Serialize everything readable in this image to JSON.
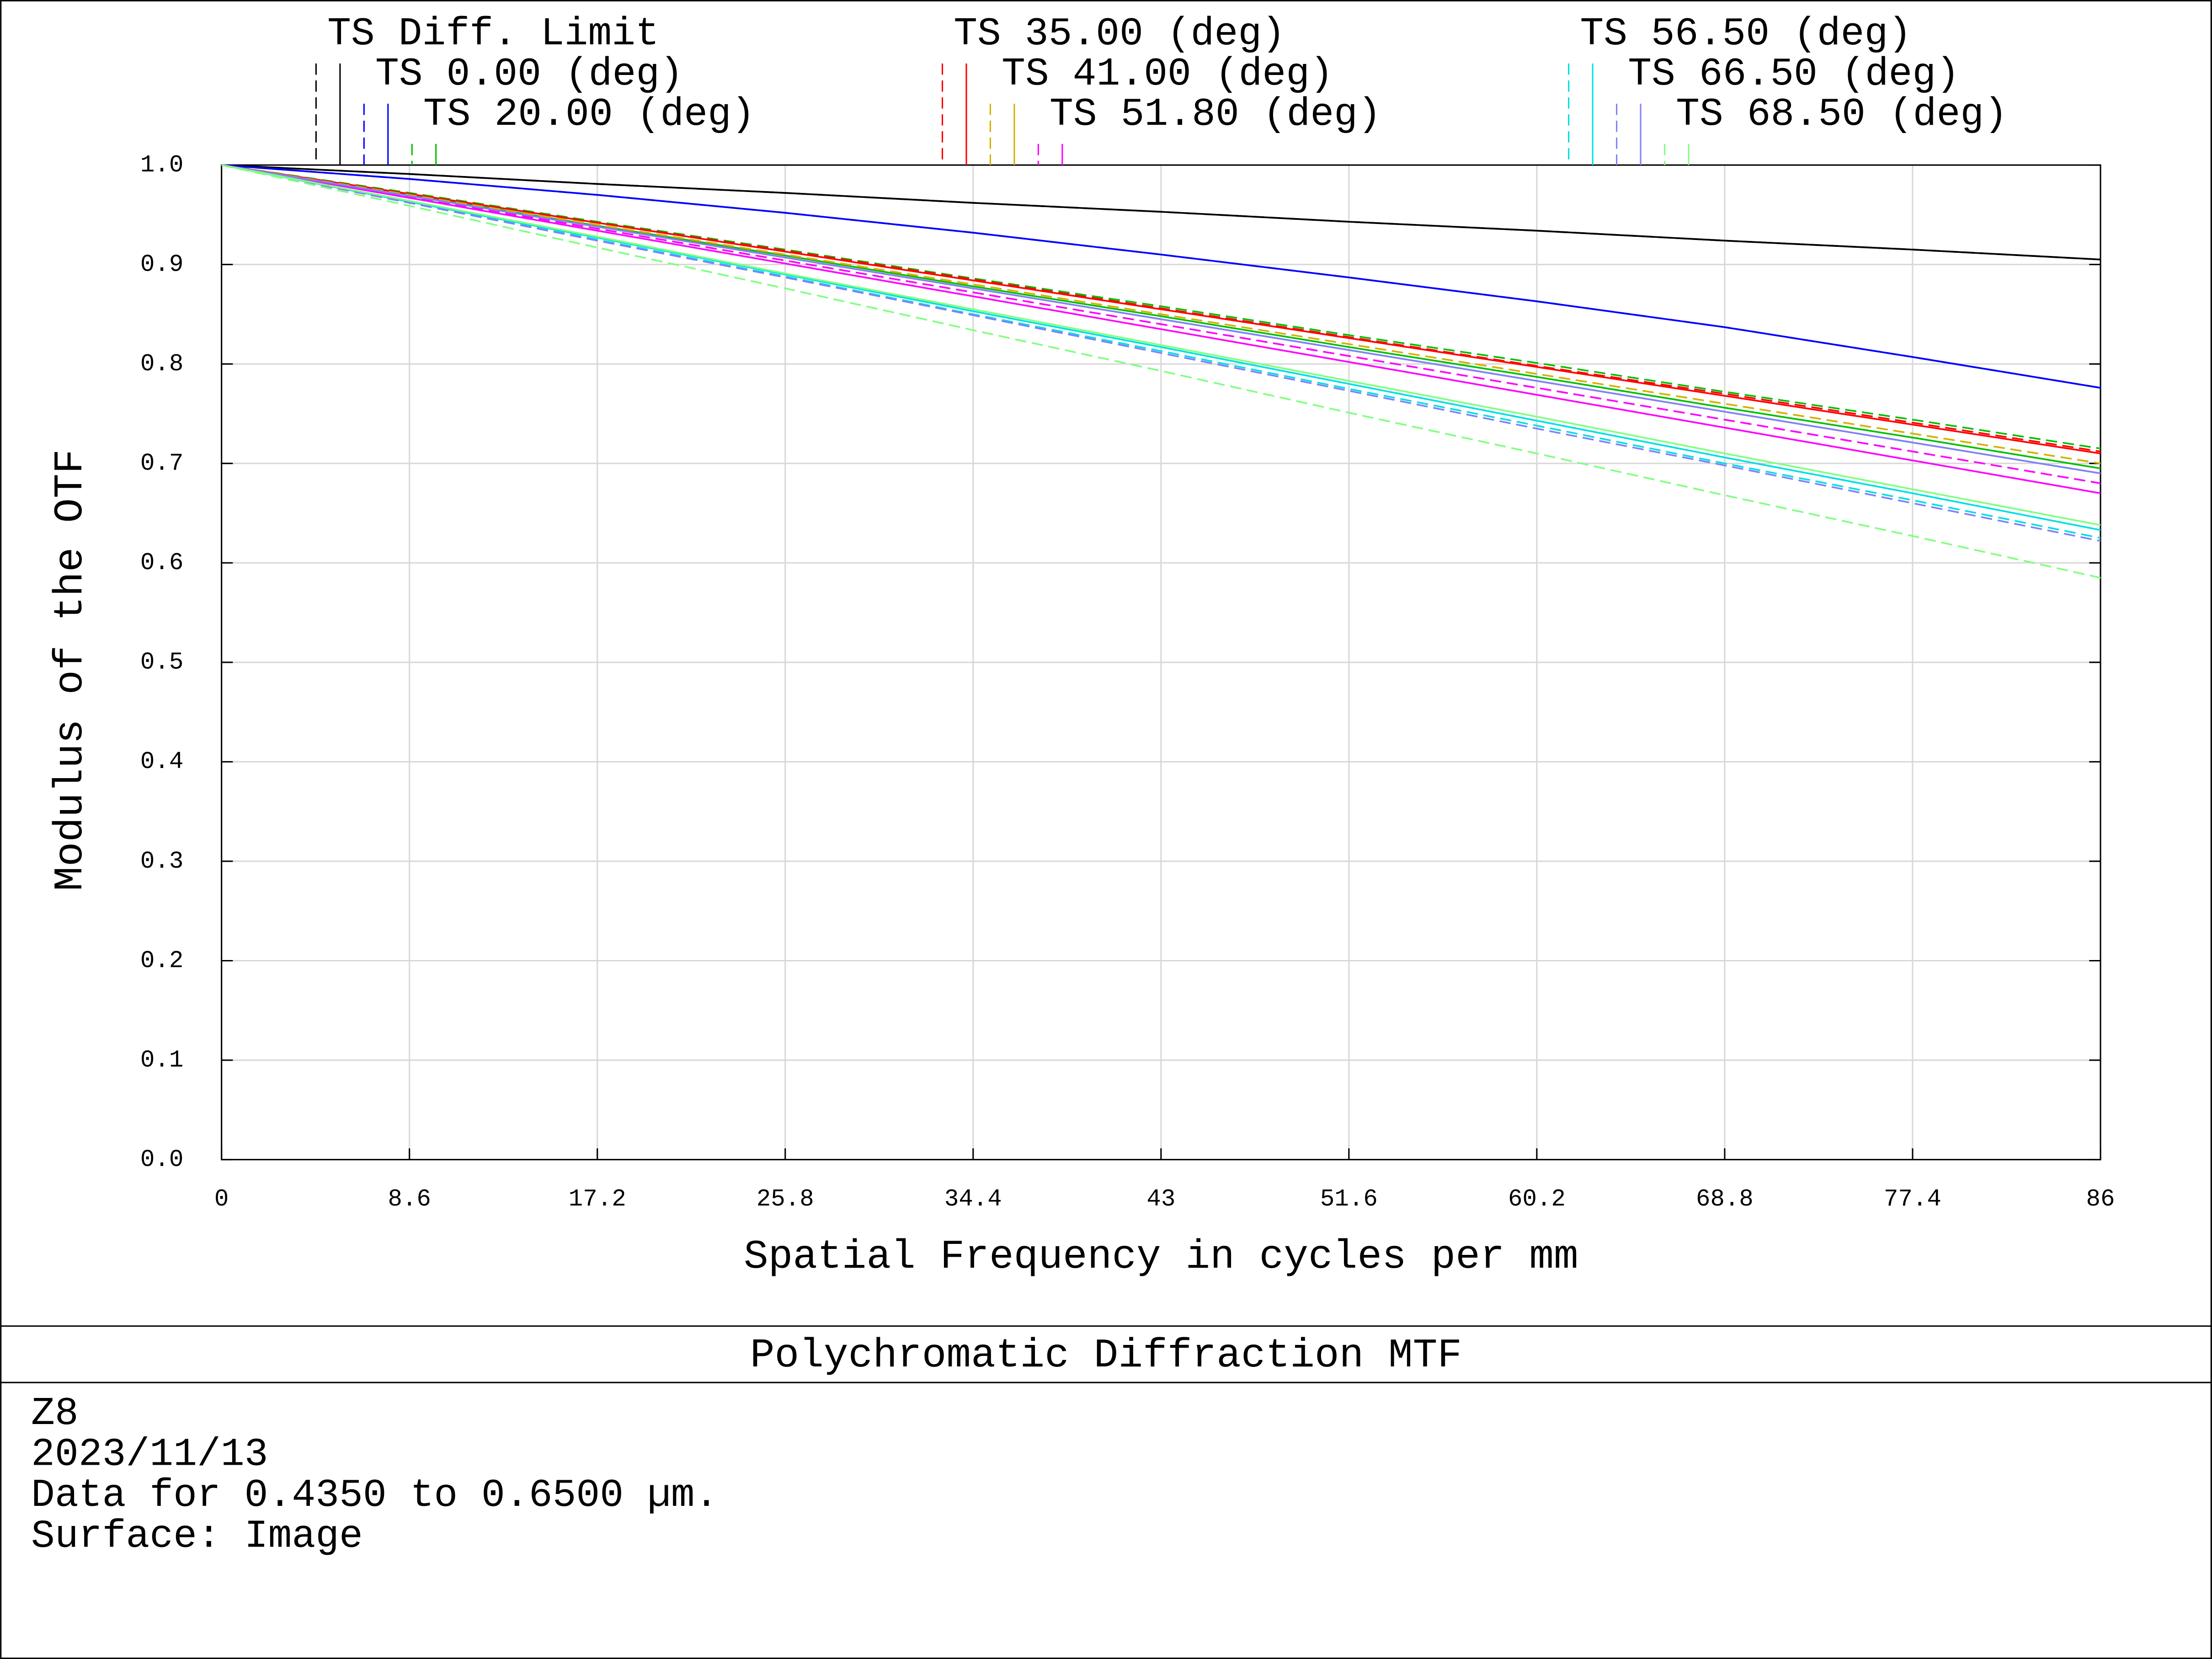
{
  "chart_data": {
    "type": "line",
    "title": "Polychromatic Diffraction MTF",
    "x_label": "Spatial Frequency in cycles per mm",
    "y_label": "Modulus of the OTF",
    "notes": [
      "Z8",
      "2023/11/13",
      "Data for 0.4350 to 0.6500 µm.",
      "Surface: Image"
    ],
    "x": [
      0,
      8.6,
      17.2,
      25.8,
      34.4,
      43,
      51.6,
      60.2,
      68.8,
      77.4,
      86
    ],
    "xlim": [
      0,
      86
    ],
    "xticks": [
      0,
      8.6,
      17.2,
      25.8,
      34.4,
      43,
      51.6,
      60.2,
      68.8,
      77.4,
      86
    ],
    "ylim": [
      0,
      1
    ],
    "yticks": [
      {
        "value": 0,
        "label": "0.0"
      },
      0.1,
      0.2,
      0.3,
      0.4,
      0.5,
      0.6,
      0.7,
      0.8,
      0.9,
      {
        "value": 1,
        "label": "1.0"
      }
    ],
    "grid": true,
    "series": [
      {
        "name": "TS Diff. Limit",
        "color": "#000000",
        "values": [
          1,
          0.991,
          0.981,
          0.972,
          0.962,
          0.953,
          0.943,
          0.934,
          0.924,
          0.915,
          0.905
        ],
        "sagittal_values": [
          1,
          0.991,
          0.981,
          0.972,
          0.962,
          0.953,
          0.943,
          0.934,
          0.924,
          0.915,
          0.905
        ]
      },
      {
        "name": "TS 0.00 (deg)",
        "color": "#0000ff",
        "values": [
          1,
          0.986,
          0.97,
          0.952,
          0.932,
          0.91,
          0.887,
          0.863,
          0.837,
          0.807,
          0.776
        ],
        "sagittal_values": [
          1,
          0.986,
          0.97,
          0.952,
          0.932,
          0.91,
          0.887,
          0.863,
          0.837,
          0.807,
          0.776
        ]
      },
      {
        "name": "TS 20.00 (deg)",
        "color": "#00c000",
        "values": [
          1,
          0.97,
          0.939,
          0.909,
          0.878,
          0.848,
          0.817,
          0.787,
          0.756,
          0.726,
          0.695
        ],
        "sagittal_values": [
          1,
          0.972,
          0.943,
          0.915,
          0.886,
          0.858,
          0.829,
          0.801,
          0.772,
          0.744,
          0.715
        ]
      },
      {
        "name": "TS 35.00 (deg)",
        "color": "#ff0000",
        "values": [
          1,
          0.971,
          0.942,
          0.913,
          0.884,
          0.855,
          0.826,
          0.797,
          0.768,
          0.739,
          0.71
        ],
        "sagittal_values": [
          1,
          0.971,
          0.942,
          0.914,
          0.885,
          0.856,
          0.827,
          0.798,
          0.77,
          0.741,
          0.712
        ]
      },
      {
        "name": "TS 41.00 (deg)",
        "color": "#d4b000",
        "values": [
          1,
          0.969,
          0.938,
          0.907,
          0.876,
          0.845,
          0.814,
          0.783,
          0.752,
          0.721,
          0.69
        ],
        "sagittal_values": [
          1,
          0.97,
          0.94,
          0.91,
          0.88,
          0.85,
          0.82,
          0.79,
          0.76,
          0.73,
          0.7
        ]
      },
      {
        "name": "TS 51.80 (deg)",
        "color": "#ff00ff",
        "values": [
          1,
          0.967,
          0.934,
          0.901,
          0.868,
          0.835,
          0.802,
          0.769,
          0.736,
          0.703,
          0.67
        ],
        "sagittal_values": [
          1,
          0.968,
          0.936,
          0.904,
          0.872,
          0.84,
          0.808,
          0.776,
          0.744,
          0.712,
          0.68
        ]
      },
      {
        "name": "TS 56.50 (deg)",
        "color": "#00e0e0",
        "values": [
          1,
          0.963,
          0.927,
          0.89,
          0.853,
          0.817,
          0.78,
          0.743,
          0.706,
          0.67,
          0.633
        ],
        "sagittal_values": [
          1,
          0.963,
          0.925,
          0.888,
          0.85,
          0.813,
          0.775,
          0.738,
          0.7,
          0.663,
          0.625
        ]
      },
      {
        "name": "TS 66.50 (deg)",
        "color": "#8080ff",
        "values": [
          1,
          0.969,
          0.938,
          0.907,
          0.876,
          0.845,
          0.814,
          0.783,
          0.752,
          0.721,
          0.69
        ],
        "sagittal_values": [
          1,
          0.962,
          0.924,
          0.887,
          0.849,
          0.811,
          0.773,
          0.735,
          0.698,
          0.66,
          0.622
        ]
      },
      {
        "name": "TS 68.50 (deg)",
        "color": "#80ff80",
        "values": [
          1,
          0.964,
          0.928,
          0.891,
          0.855,
          0.819,
          0.783,
          0.747,
          0.71,
          0.674,
          0.638
        ],
        "sagittal_values": [
          1,
          0.959,
          0.917,
          0.876,
          0.834,
          0.793,
          0.751,
          0.71,
          0.668,
          0.627,
          0.585
        ]
      }
    ]
  }
}
